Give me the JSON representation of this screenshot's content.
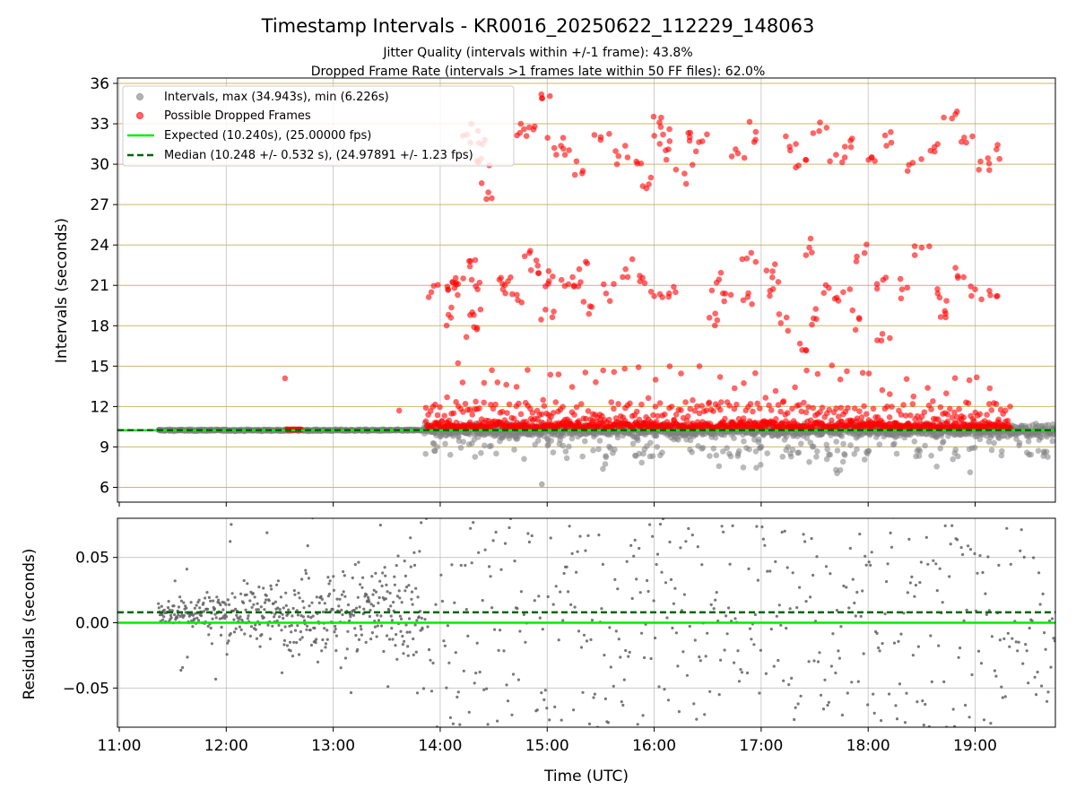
{
  "figure": {
    "title": "Timestamp Intervals - KR0016_20250622_112229_148063",
    "subtitle_lines": [
      "Jitter Quality (intervals within +/-1 frame): 43.8%",
      "Dropped Frame Rate (intervals >1 frames late within 50 FF files): 62.0%"
    ],
    "colors": {
      "intervals": "#808080",
      "dropped": "#ff0000",
      "expected": "#00ee00",
      "median": "#006400",
      "goldgrid": "#c8a850"
    }
  },
  "chart_data": [
    {
      "type": "scatter",
      "ylabel": "Intervals (seconds)",
      "ylim": [
        4.9,
        36.4
      ],
      "yticks": [
        "6",
        "9",
        "12",
        "15",
        "18",
        "21",
        "24",
        "27",
        "30",
        "33",
        "36"
      ],
      "x_range_utc": [
        "10:59",
        "19:45"
      ],
      "grid": "vertical gray at each hour; horizontal gold at every 3 s",
      "legend_position": "top-left",
      "legend": [
        "Intervals, max (34.943s), min (6.226s)",
        "Possible Dropped Frames",
        "Expected (10.240s), (25.00000 fps)",
        "Median (10.248 +/- 0.532 s), (24.97891 +/- 1.23 fps)"
      ],
      "expected_interval": 10.24,
      "median_interval": 10.248,
      "max_interval": 34.943,
      "min_interval": 6.226,
      "series": [
        {
          "name": "Possible Dropped Frames",
          "note": "representative sample of visible outliers",
          "points": [
            [
              "12:33",
              14.1
            ],
            [
              "13:37",
              11.7
            ],
            [
              "13:55",
              20.5
            ],
            [
              "14:04",
              20.9
            ],
            [
              "14:06",
              18.6
            ],
            [
              "14:08",
              20.8
            ],
            [
              "14:10",
              21.1
            ],
            [
              "14:15",
              32.2
            ],
            [
              "14:17",
              22.8
            ],
            [
              "14:18",
              19.0
            ],
            [
              "14:19",
              17.9
            ],
            [
              "14:21",
              20.7
            ],
            [
              "14:23",
              30.4
            ],
            [
              "14:25",
              31.8
            ],
            [
              "14:27",
              27.9
            ],
            [
              "14:29",
              14.7
            ],
            [
              "14:35",
              21.1
            ],
            [
              "14:38",
              21.3
            ],
            [
              "14:43",
              20.3
            ],
            [
              "14:47",
              32.6
            ],
            [
              "14:50",
              23.4
            ],
            [
              "14:53",
              32.8
            ],
            [
              "14:55",
              21.9
            ],
            [
              "14:57",
              34.9
            ],
            [
              "14:59",
              19.2
            ],
            [
              "15:01",
              21.3
            ],
            [
              "15:04",
              31.2
            ],
            [
              "15:08",
              21.4
            ],
            [
              "15:10",
              30.7
            ],
            [
              "15:15",
              20.9
            ],
            [
              "15:18",
              22.2
            ],
            [
              "15:20",
              29.5
            ],
            [
              "15:25",
              19.4
            ],
            [
              "15:30",
              31.8
            ],
            [
              "15:33",
              20.4
            ],
            [
              "15:40",
              30.6
            ],
            [
              "15:44",
              22.2
            ],
            [
              "15:50",
              30.2
            ],
            [
              "15:52",
              21.3
            ],
            [
              "15:57",
              28.5
            ],
            [
              "16:00",
              20.2
            ],
            [
              "16:03",
              33.1
            ],
            [
              "16:05",
              32.2
            ],
            [
              "16:08",
              31.1
            ],
            [
              "16:12",
              20.5
            ],
            [
              "16:17",
              29.3
            ],
            [
              "16:20",
              32.0
            ],
            [
              "16:27",
              31.7
            ],
            [
              "16:31",
              18.6
            ],
            [
              "16:35",
              21.2
            ],
            [
              "16:37",
              14.2
            ],
            [
              "16:43",
              20.3
            ],
            [
              "16:47",
              30.8
            ],
            [
              "16:50",
              19.9
            ],
            [
              "16:52",
              23.0
            ],
            [
              "16:57",
              32.4
            ],
            [
              "17:03",
              22.1
            ],
            [
              "17:05",
              20.6
            ],
            [
              "17:11",
              18.2
            ],
            [
              "17:16",
              31.3
            ],
            [
              "17:21",
              29.9
            ],
            [
              "17:25",
              16.2
            ],
            [
              "17:27",
              23.8
            ],
            [
              "17:31",
              18.5
            ],
            [
              "17:33",
              33.1
            ],
            [
              "17:38",
              20.8
            ],
            [
              "17:42",
              30.7
            ],
            [
              "17:46",
              20.5
            ],
            [
              "17:51",
              31.9
            ],
            [
              "17:55",
              18.5
            ],
            [
              "17:58",
              23.4
            ],
            [
              "18:02",
              30.5
            ],
            [
              "18:05",
              21.1
            ],
            [
              "18:08",
              17.4
            ],
            [
              "18:13",
              31.6
            ],
            [
              "18:19",
              20.7
            ],
            [
              "18:25",
              30.1
            ],
            [
              "18:30",
              23.8
            ],
            [
              "18:35",
              31.0
            ],
            [
              "18:39",
              20.4
            ],
            [
              "18:43",
              19.1
            ],
            [
              "18:47",
              33.4
            ],
            [
              "18:49",
              22.3
            ],
            [
              "18:55",
              31.6
            ],
            [
              "19:00",
              20.7
            ],
            [
              "19:03",
              30.2
            ],
            [
              "19:08",
              20.6
            ],
            [
              "19:12",
              31.1
            ]
          ]
        }
      ]
    },
    {
      "type": "scatter",
      "xlabel": "Time (UTC)",
      "ylabel": "Residuals (seconds)",
      "ylim": [
        -0.08,
        0.08
      ],
      "yticks": [
        "−0.05",
        "0.00",
        "0.05"
      ],
      "xticks": [
        "11:00",
        "12:00",
        "13:00",
        "14:00",
        "15:00",
        "16:00",
        "17:00",
        "18:00",
        "19:00"
      ],
      "expected_residual": 0.0,
      "median_residual": 0.008
    }
  ]
}
